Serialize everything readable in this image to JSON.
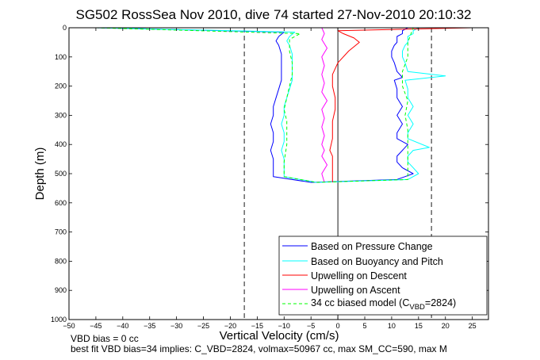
{
  "chart_data": {
    "type": "line",
    "title": "SG502 RossSea Nov 2010, dive 74 started 27-Nov-2010 20:10:32",
    "xlabel": "Vertical Velocity (cm/s)",
    "ylabel": "Depth (m)",
    "xlim": [
      -50,
      28
    ],
    "ylim": [
      1000,
      0
    ],
    "y_reversed": true,
    "grid": false,
    "legend_position": "bottom-right",
    "xticks": [
      -50,
      -45,
      -40,
      -35,
      -30,
      -25,
      -20,
      -15,
      -10,
      -5,
      0,
      5,
      10,
      15,
      20,
      25
    ],
    "yticks": [
      0,
      100,
      200,
      300,
      400,
      500,
      600,
      700,
      800,
      900,
      1000
    ],
    "xtick_labels": [
      "−50",
      "−45",
      "−40",
      "−35",
      "−30",
      "−25",
      "−20",
      "−15",
      "−10",
      "−5",
      "0",
      "5",
      "10",
      "15",
      "20",
      "25"
    ],
    "ytick_labels": [
      "0",
      "100",
      "200",
      "300",
      "400",
      "500",
      "600",
      "700",
      "800",
      "900",
      "1000"
    ],
    "reference_lines": [
      {
        "axis": "x",
        "value": -17.4,
        "style": "dashed"
      },
      {
        "axis": "x",
        "value": 17.4,
        "style": "dashed"
      },
      {
        "axis": "x",
        "value": 0,
        "style": "solid"
      }
    ],
    "series": [
      {
        "name": "Based on Pressure Change",
        "color": "#0000ff",
        "style": "solid",
        "x": [
          -45,
          -10,
          -11,
          -11.5,
          -11,
          -10.5,
          -10.5,
          -10.5,
          -10.5,
          -11,
          -11.5,
          -12,
          -12,
          -12.5,
          -12,
          -12,
          -12.5,
          -12,
          -12,
          -12,
          -5,
          11,
          14,
          12,
          11,
          11,
          12,
          13,
          11,
          11,
          12,
          11,
          12,
          11,
          11,
          10.5,
          12,
          11,
          10.5,
          10,
          10,
          10.5,
          11,
          11,
          11,
          12,
          12,
          13
        ],
        "y": [
          0,
          15,
          30,
          45,
          60,
          90,
          120,
          150,
          180,
          210,
          240,
          270,
          300,
          330,
          360,
          390,
          420,
          450,
          480,
          510,
          530,
          520,
          500,
          480,
          460,
          440,
          420,
          400,
          380,
          360,
          330,
          300,
          270,
          240,
          210,
          180,
          170,
          150,
          120,
          100,
          80,
          60,
          50,
          40,
          30,
          20,
          10,
          0
        ]
      },
      {
        "name": "Based on Buoyancy and Pitch",
        "color": "#00ffff",
        "style": "solid",
        "x": [
          -45,
          -8,
          -9,
          -9.5,
          -9,
          -8.5,
          -8.5,
          -8.5,
          -8.5,
          -9,
          -9.5,
          -10,
          -10,
          -10.5,
          -10,
          -10,
          -10.5,
          -10,
          -10,
          -10,
          -4,
          13,
          15,
          14,
          13,
          13,
          14,
          17,
          13,
          13,
          14,
          13,
          14,
          13,
          13,
          12.5,
          20,
          13,
          12.5,
          12,
          12,
          12.5,
          13,
          13,
          13,
          14,
          14,
          15
        ],
        "y": [
          0,
          15,
          30,
          45,
          60,
          90,
          120,
          150,
          180,
          210,
          240,
          270,
          300,
          330,
          360,
          390,
          420,
          450,
          480,
          510,
          530,
          520,
          500,
          480,
          460,
          440,
          420,
          410,
          380,
          360,
          330,
          300,
          270,
          240,
          210,
          180,
          165,
          150,
          120,
          100,
          80,
          60,
          50,
          40,
          30,
          20,
          10,
          0
        ]
      },
      {
        "name": "Upwelling on Descent",
        "color": "#ff0000",
        "style": "solid",
        "x": [
          25,
          0,
          1,
          3,
          4,
          2,
          0,
          -1,
          -1,
          -0.5,
          -0.5,
          -1,
          -1,
          -1,
          -1.5,
          -1,
          -1,
          -1,
          -1,
          -1,
          -1
        ],
        "y": [
          0,
          10,
          20,
          35,
          50,
          80,
          120,
          160,
          200,
          240,
          280,
          320,
          360,
          380,
          420,
          440,
          460,
          480,
          500,
          520,
          530
        ]
      },
      {
        "name": "Upwelling on Ascent",
        "color": "#ff00ff",
        "style": "solid",
        "x": [
          -2.5,
          -3,
          -2,
          -3,
          -2.5,
          -3,
          -2.5,
          -3,
          -2.5,
          -3,
          -2,
          -3,
          -2.5,
          -3,
          -2.5,
          -3,
          -2,
          -3,
          -2.5,
          -3
        ],
        "y": [
          530,
          500,
          470,
          440,
          420,
          400,
          370,
          340,
          310,
          280,
          250,
          220,
          190,
          160,
          130,
          100,
          70,
          40,
          20,
          0
        ]
      },
      {
        "name": "34 cc biased model (C_VBD=2824)",
        "color": "#00ff00",
        "style": "dashed",
        "x": [
          -45,
          -7,
          -9,
          -9,
          -8.5,
          -8.5,
          -9,
          -9.5,
          -10,
          -9.5,
          -9.5,
          -9.5,
          -10,
          -10,
          -4,
          13,
          13,
          13,
          13,
          13,
          12.5,
          13,
          12,
          12,
          13,
          13,
          14
        ],
        "y": [
          0,
          20,
          40,
          80,
          120,
          160,
          200,
          240,
          280,
          320,
          360,
          400,
          460,
          510,
          530,
          520,
          480,
          440,
          400,
          350,
          300,
          250,
          200,
          150,
          100,
          50,
          0
        ]
      }
    ]
  },
  "legend": {
    "items": [
      {
        "label": "Based on Pressure Change",
        "color": "#0000ff",
        "style": "solid"
      },
      {
        "label": "Based on Buoyancy and Pitch",
        "color": "#00ffff",
        "style": "solid"
      },
      {
        "label": "Upwelling on Descent",
        "color": "#ff0000",
        "style": "solid"
      },
      {
        "label": "Upwelling on Ascent",
        "color": "#ff00ff",
        "style": "solid"
      },
      {
        "label_prefix": "34 cc biased model (C",
        "label_sub": "VBD",
        "label_suffix": "=2824)",
        "color": "#00ff00",
        "style": "dashed"
      }
    ]
  },
  "notes": {
    "line1": "VBD bias = 0 cc",
    "line2": "best fit VBD bias=34 implies: C_VBD=2824, volmax=50967 cc, max SM_CC=590, max M"
  }
}
